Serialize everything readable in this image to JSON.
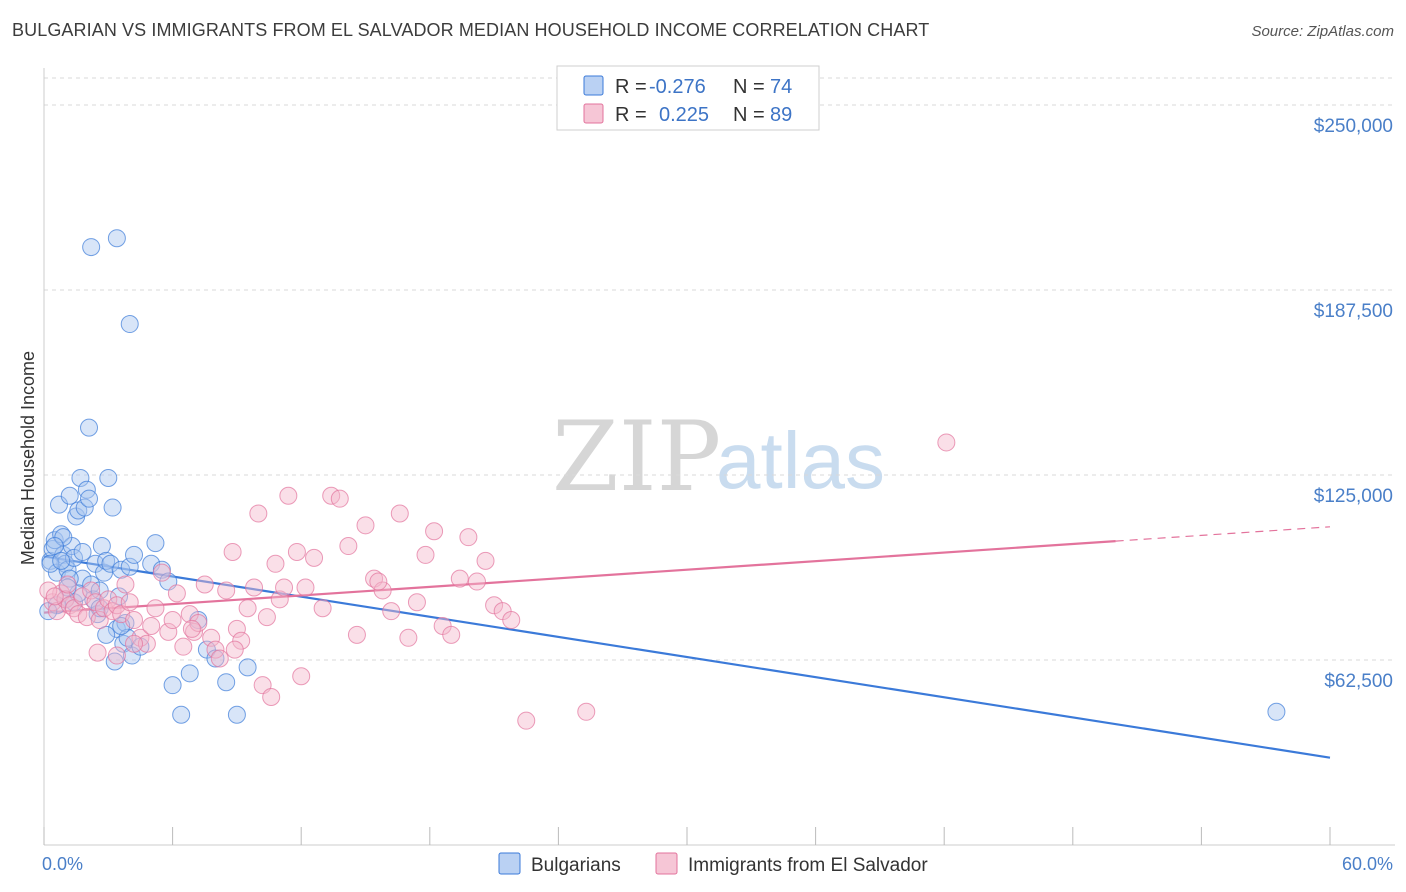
{
  "title": "BULGARIAN VS IMMIGRANTS FROM EL SALVADOR MEDIAN HOUSEHOLD INCOME CORRELATION CHART",
  "source": "Source: ZipAtlas.com",
  "watermark": {
    "zip": "ZIP",
    "atlas": "atlas"
  },
  "colors": {
    "blue": "#3b7ad9",
    "blue_fill": "#a9c6f0",
    "pink": "#e3739c",
    "pink_fill": "#f4b8cc",
    "axis_text": "#4a7fc8",
    "grid": "#d9d9d9"
  },
  "legend": {
    "r_label": "R =",
    "n_label": "N =",
    "rows": [
      {
        "name": "Bulgarians",
        "r": "-0.276",
        "n": "74",
        "color": "blue"
      },
      {
        "name": "Immigrants from El Salvador",
        "r": "0.225",
        "n": "89",
        "color": "pink"
      }
    ]
  },
  "chart_data": {
    "type": "scatter",
    "title": "BULGARIAN VS IMMIGRANTS FROM EL SALVADOR MEDIAN HOUSEHOLD INCOME CORRELATION CHART",
    "xlabel": "",
    "ylabel": "Median Household Income",
    "xlim": [
      0,
      60
    ],
    "ylim": [
      0,
      262500
    ],
    "x_tick_labels": [
      "0.0%",
      "60.0%"
    ],
    "y_ticks": [
      62500,
      125000,
      187500,
      250000
    ],
    "y_tick_labels": [
      "$62,500",
      "$125,000",
      "$187,500",
      "$250,000"
    ],
    "grid": true,
    "series": [
      {
        "name": "Bulgarians",
        "color": "blue",
        "r": -0.276,
        "n": 74,
        "trend": {
          "x": [
            0,
            60
          ],
          "y": [
            97500,
            29500
          ],
          "dashed_from": null
        },
        "points": [
          [
            0.3,
            96000
          ],
          [
            0.4,
            100000
          ],
          [
            0.5,
            103000
          ],
          [
            0.6,
            92000
          ],
          [
            0.7,
            115000
          ],
          [
            0.8,
            105000
          ],
          [
            0.9,
            98000
          ],
          [
            1.0,
            95000
          ],
          [
            1.1,
            93000
          ],
          [
            1.2,
            118000
          ],
          [
            1.3,
            101000
          ],
          [
            1.4,
            97000
          ],
          [
            1.5,
            111000
          ],
          [
            1.6,
            113000
          ],
          [
            1.7,
            124000
          ],
          [
            1.8,
            90000
          ],
          [
            1.9,
            114000
          ],
          [
            2.0,
            120000
          ],
          [
            2.1,
            117000
          ],
          [
            2.2,
            88000
          ],
          [
            2.3,
            83000
          ],
          [
            2.4,
            95000
          ],
          [
            2.5,
            78000
          ],
          [
            2.6,
            86000
          ],
          [
            2.7,
            101000
          ],
          [
            2.8,
            92000
          ],
          [
            2.9,
            96000
          ],
          [
            3.0,
            124000
          ],
          [
            3.1,
            95000
          ],
          [
            3.2,
            114000
          ],
          [
            3.3,
            62000
          ],
          [
            3.4,
            73000
          ],
          [
            3.5,
            84000
          ],
          [
            3.6,
            93000
          ],
          [
            3.7,
            68000
          ],
          [
            3.8,
            75000
          ],
          [
            3.9,
            70000
          ],
          [
            4.0,
            94000
          ],
          [
            4.1,
            64000
          ],
          [
            4.2,
            98000
          ],
          [
            2.2,
            202000
          ],
          [
            3.4,
            205000
          ],
          [
            4.0,
            176000
          ],
          [
            2.1,
            141000
          ],
          [
            5.0,
            95000
          ],
          [
            5.2,
            102000
          ],
          [
            5.5,
            93000
          ],
          [
            6.0,
            54000
          ],
          [
            6.4,
            44000
          ],
          [
            6.8,
            58000
          ],
          [
            7.2,
            76000
          ],
          [
            7.6,
            66000
          ],
          [
            8.0,
            63000
          ],
          [
            8.5,
            55000
          ],
          [
            9.0,
            44000
          ],
          [
            9.5,
            60000
          ],
          [
            1.0,
            83000
          ],
          [
            1.4,
            82000
          ],
          [
            0.6,
            81000
          ],
          [
            0.9,
            104000
          ],
          [
            1.6,
            85000
          ],
          [
            1.8,
            99000
          ],
          [
            0.5,
            101000
          ],
          [
            0.3,
            95000
          ],
          [
            0.2,
            79000
          ],
          [
            1.2,
            90000
          ],
          [
            2.6,
            80000
          ],
          [
            2.9,
            71000
          ],
          [
            3.6,
            74000
          ],
          [
            4.5,
            67000
          ],
          [
            5.8,
            89000
          ],
          [
            1.1,
            87000
          ],
          [
            0.8,
            96000
          ],
          [
            57.5,
            45000
          ]
        ]
      },
      {
        "name": "Immigrants from El Salvador",
        "color": "pink",
        "r": 0.225,
        "n": 89,
        "trend": {
          "x": [
            0,
            60
          ],
          "y": [
            78500,
            107500
          ],
          "dashed_from": 50
        },
        "points": [
          [
            0.4,
            82000
          ],
          [
            0.6,
            79000
          ],
          [
            0.8,
            85000
          ],
          [
            1.0,
            83000
          ],
          [
            1.2,
            81000
          ],
          [
            1.4,
            80000
          ],
          [
            1.6,
            78000
          ],
          [
            1.8,
            84000
          ],
          [
            2.0,
            77000
          ],
          [
            2.2,
            86000
          ],
          [
            2.4,
            82000
          ],
          [
            2.6,
            76000
          ],
          [
            2.8,
            80000
          ],
          [
            3.0,
            83000
          ],
          [
            3.2,
            79000
          ],
          [
            3.4,
            81000
          ],
          [
            3.6,
            78000
          ],
          [
            3.8,
            88000
          ],
          [
            4.0,
            82000
          ],
          [
            4.2,
            76000
          ],
          [
            4.5,
            70000
          ],
          [
            4.8,
            68000
          ],
          [
            5.0,
            74000
          ],
          [
            5.2,
            80000
          ],
          [
            5.5,
            92000
          ],
          [
            5.8,
            72000
          ],
          [
            6.0,
            76000
          ],
          [
            6.2,
            85000
          ],
          [
            6.5,
            67000
          ],
          [
            6.8,
            78000
          ],
          [
            7.0,
            72000
          ],
          [
            7.2,
            75000
          ],
          [
            7.5,
            88000
          ],
          [
            7.8,
            70000
          ],
          [
            8.0,
            66000
          ],
          [
            8.2,
            63000
          ],
          [
            8.5,
            86000
          ],
          [
            8.8,
            99000
          ],
          [
            9.0,
            73000
          ],
          [
            9.2,
            69000
          ],
          [
            9.5,
            80000
          ],
          [
            9.8,
            87000
          ],
          [
            10.0,
            112000
          ],
          [
            10.4,
            77000
          ],
          [
            10.8,
            95000
          ],
          [
            11.0,
            83000
          ],
          [
            11.4,
            118000
          ],
          [
            11.8,
            99000
          ],
          [
            12.2,
            87000
          ],
          [
            12.6,
            97000
          ],
          [
            13.0,
            80000
          ],
          [
            13.4,
            118000
          ],
          [
            13.8,
            117000
          ],
          [
            14.2,
            101000
          ],
          [
            14.6,
            71000
          ],
          [
            15.0,
            108000
          ],
          [
            15.4,
            90000
          ],
          [
            15.8,
            86000
          ],
          [
            16.2,
            79000
          ],
          [
            16.6,
            112000
          ],
          [
            17.0,
            70000
          ],
          [
            17.4,
            82000
          ],
          [
            17.8,
            98000
          ],
          [
            18.2,
            106000
          ],
          [
            18.6,
            74000
          ],
          [
            19.0,
            71000
          ],
          [
            19.4,
            90000
          ],
          [
            19.8,
            104000
          ],
          [
            20.2,
            89000
          ],
          [
            20.6,
            96000
          ],
          [
            21.0,
            81000
          ],
          [
            21.4,
            79000
          ],
          [
            21.8,
            76000
          ],
          [
            10.2,
            54000
          ],
          [
            10.6,
            50000
          ],
          [
            12.0,
            57000
          ],
          [
            22.5,
            42000
          ],
          [
            25.3,
            45000
          ],
          [
            42.1,
            136000
          ],
          [
            0.2,
            86000
          ],
          [
            0.5,
            84000
          ],
          [
            1.1,
            88000
          ],
          [
            2.5,
            65000
          ],
          [
            3.4,
            64000
          ],
          [
            4.2,
            68000
          ],
          [
            6.9,
            73000
          ],
          [
            8.9,
            66000
          ],
          [
            11.2,
            87000
          ],
          [
            15.6,
            89000
          ]
        ]
      }
    ]
  }
}
